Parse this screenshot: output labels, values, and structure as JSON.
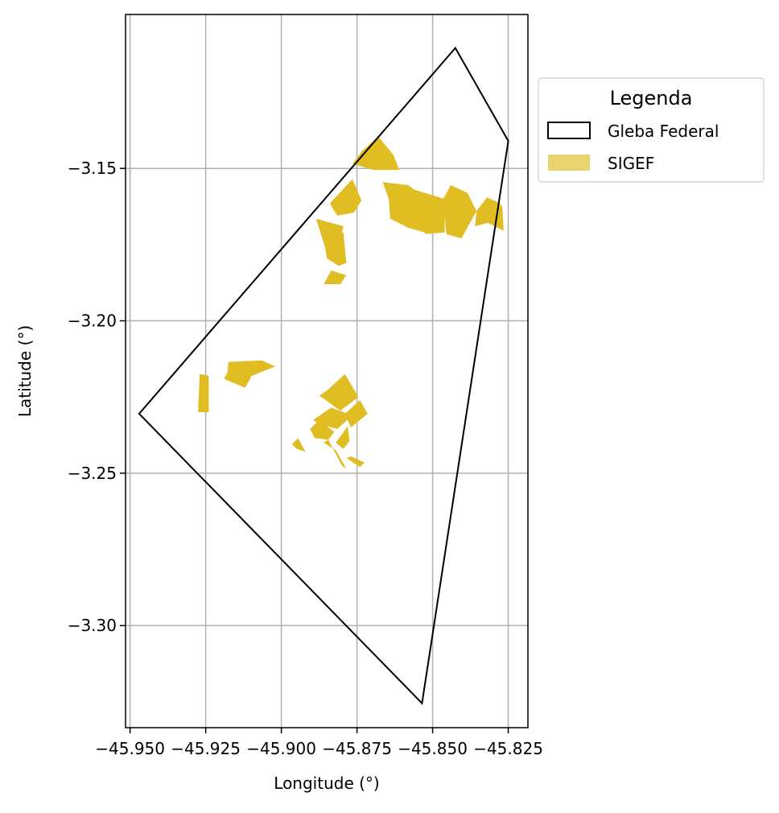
{
  "chart_data": {
    "type": "map",
    "xlabel": "Longitude (°)",
    "ylabel": "Latitude (°)",
    "xlim": [
      -45.9515,
      -45.8185
    ],
    "ylim": [
      -3.3335,
      -3.0995
    ],
    "xticks": [
      -45.95,
      -45.925,
      -45.9,
      -45.875,
      -45.85,
      -45.825
    ],
    "xtick_labels": [
      "−45.950",
      "−45.925",
      "−45.900",
      "−45.875",
      "−45.850",
      "−45.825"
    ],
    "yticks": [
      -3.15,
      -3.2,
      -3.25,
      -3.3
    ],
    "ytick_labels": [
      "−3.15",
      "−3.20",
      "−3.25",
      "−3.30"
    ],
    "grid": true,
    "legend": {
      "title": "Legenda",
      "placement": "outside-upper-right",
      "items": [
        {
          "label": "Gleba Federal",
          "style": "outline",
          "color": "#000000"
        },
        {
          "label": "SIGEF",
          "style": "fill",
          "color": "#e8d36e"
        }
      ]
    },
    "colors": {
      "gleba_outline": "#000000",
      "sigef_fill": "#e0bd22",
      "grid": "#b0b0b0"
    },
    "gleba_federal": [
      [
        -45.947,
        -3.2305
      ],
      [
        -45.8425,
        -3.1105
      ],
      [
        -45.825,
        -3.141
      ],
      [
        -45.8535,
        -3.3255
      ]
    ],
    "sigef_parcels": [
      [
        [
          -45.8735,
          -3.1445
        ],
        [
          -45.868,
          -3.1395
        ],
        [
          -45.863,
          -3.1455
        ],
        [
          -45.861,
          -3.1505
        ],
        [
          -45.8695,
          -3.1505
        ],
        [
          -45.8765,
          -3.1485
        ]
      ],
      [
        [
          -45.8765,
          -3.1535
        ],
        [
          -45.8735,
          -3.1605
        ],
        [
          -45.876,
          -3.1645
        ],
        [
          -45.8815,
          -3.1655
        ],
        [
          -45.884,
          -3.1615
        ]
      ],
      [
        [
          -45.8665,
          -3.1545
        ],
        [
          -45.858,
          -3.1555
        ],
        [
          -45.856,
          -3.157
        ],
        [
          -45.851,
          -3.1715
        ],
        [
          -45.858,
          -3.1695
        ],
        [
          -45.864,
          -3.1665
        ],
        [
          -45.8645,
          -3.16
        ]
      ],
      [
        [
          -45.856,
          -3.157
        ],
        [
          -45.846,
          -3.16
        ],
        [
          -45.846,
          -3.171
        ],
        [
          -45.8525,
          -3.1715
        ]
      ],
      [
        [
          -45.8465,
          -3.16
        ],
        [
          -45.8455,
          -3.1715
        ],
        [
          -45.8405,
          -3.173
        ],
        [
          -45.8355,
          -3.164
        ],
        [
          -45.8385,
          -3.158
        ],
        [
          -45.844,
          -3.1555
        ]
      ],
      [
        [
          -45.8355,
          -3.164
        ],
        [
          -45.832,
          -3.1595
        ],
        [
          -45.8275,
          -3.1615
        ],
        [
          -45.8285,
          -3.167
        ],
        [
          -45.836,
          -3.169
        ]
      ],
      [
        [
          -45.827,
          -3.162
        ],
        [
          -45.8265,
          -3.1705
        ],
        [
          -45.8325,
          -3.1675
        ]
      ],
      [
        [
          -45.8885,
          -3.1665
        ],
        [
          -45.8795,
          -3.169
        ],
        [
          -45.8815,
          -3.1775
        ],
        [
          -45.8855,
          -3.176
        ]
      ],
      [
        [
          -45.8795,
          -3.171
        ],
        [
          -45.8785,
          -3.181
        ],
        [
          -45.881,
          -3.182
        ],
        [
          -45.885,
          -3.1795
        ],
        [
          -45.886,
          -3.1725
        ]
      ],
      [
        [
          -45.8835,
          -3.1835
        ],
        [
          -45.8785,
          -3.185
        ],
        [
          -45.8805,
          -3.188
        ],
        [
          -45.886,
          -3.188
        ]
      ],
      [
        [
          -45.9175,
          -3.2135
        ],
        [
          -45.9065,
          -3.213
        ],
        [
          -45.902,
          -3.215
        ],
        [
          -45.911,
          -3.2185
        ],
        [
          -45.918,
          -3.2195
        ]
      ],
      [
        [
          -45.9145,
          -3.2135
        ],
        [
          -45.917,
          -3.2155
        ],
        [
          -45.919,
          -3.219
        ],
        [
          -45.912,
          -3.222
        ],
        [
          -45.91,
          -3.2185
        ]
      ],
      [
        [
          -45.927,
          -3.2175
        ],
        [
          -45.924,
          -3.218
        ],
        [
          -45.924,
          -3.23
        ],
        [
          -45.9275,
          -3.23
        ]
      ],
      [
        [
          -45.879,
          -3.2175
        ],
        [
          -45.8745,
          -3.225
        ],
        [
          -45.8805,
          -3.2295
        ],
        [
          -45.8875,
          -3.2245
        ],
        [
          -45.8895,
          -3.226
        ],
        [
          -45.8845,
          -3.2225
        ]
      ],
      [
        [
          -45.8835,
          -3.2285
        ],
        [
          -45.8765,
          -3.231
        ],
        [
          -45.8815,
          -3.2355
        ],
        [
          -45.8875,
          -3.234
        ],
        [
          -45.8895,
          -3.2325
        ]
      ],
      [
        [
          -45.874,
          -3.226
        ],
        [
          -45.8715,
          -3.2305
        ],
        [
          -45.877,
          -3.235
        ],
        [
          -45.879,
          -3.2305
        ]
      ],
      [
        [
          -45.8875,
          -3.2325
        ],
        [
          -45.8825,
          -3.2365
        ],
        [
          -45.8845,
          -3.239
        ],
        [
          -45.889,
          -3.2385
        ],
        [
          -45.8905,
          -3.2355
        ]
      ],
      [
        [
          -45.878,
          -3.2345
        ],
        [
          -45.882,
          -3.24
        ],
        [
          -45.8795,
          -3.242
        ],
        [
          -45.8775,
          -3.2395
        ]
      ],
      [
        [
          -45.8845,
          -3.239
        ],
        [
          -45.88,
          -3.2475
        ],
        [
          -45.8785,
          -3.2485
        ],
        [
          -45.882,
          -3.2425
        ],
        [
          -45.886,
          -3.24
        ]
      ],
      [
        [
          -45.8785,
          -3.245
        ],
        [
          -45.874,
          -3.248
        ],
        [
          -45.8725,
          -3.2465
        ],
        [
          -45.877,
          -3.2445
        ]
      ],
      [
        [
          -45.8945,
          -3.2385
        ],
        [
          -45.892,
          -3.243
        ],
        [
          -45.895,
          -3.242
        ],
        [
          -45.8965,
          -3.2405
        ]
      ]
    ]
  }
}
